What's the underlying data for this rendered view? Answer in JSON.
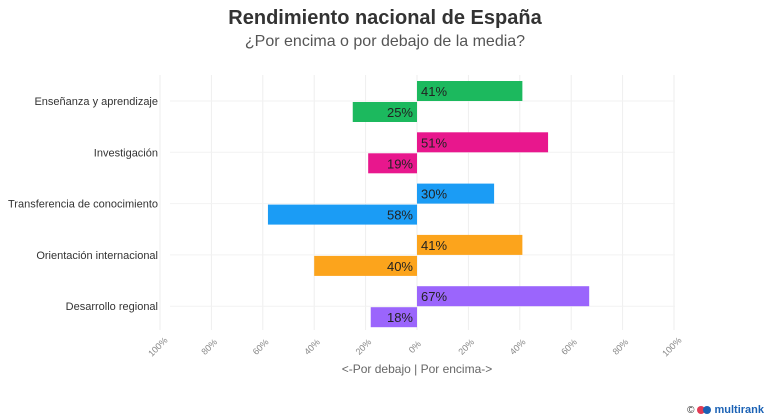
{
  "chart_data": {
    "type": "bar",
    "orientation": "horizontal-diverging",
    "title": "Rendimiento nacional de España",
    "subtitle": "¿Por encima o por debajo de la media?",
    "xlabel": "<-Por debajo | Por encima->",
    "xlim": [
      -100,
      100
    ],
    "x_ticks": [
      -100,
      -80,
      -60,
      -40,
      -20,
      0,
      20,
      40,
      60,
      80,
      100
    ],
    "x_tick_labels": [
      "100%",
      "80%",
      "60%",
      "40%",
      "20%",
      "0%",
      "20%",
      "40%",
      "60%",
      "80%",
      "100%"
    ],
    "grid": true,
    "categories": [
      "Enseñanza y aprendizaje",
      "Investigación",
      "Transferencia de conocimiento",
      "Orientación internacional",
      "Desarrollo regional"
    ],
    "above": [
      41,
      51,
      30,
      41,
      67
    ],
    "below": [
      25,
      19,
      58,
      40,
      18
    ],
    "above_labels": [
      "41%",
      "51%",
      "30%",
      "41%",
      "67%"
    ],
    "below_labels": [
      "25%",
      "19%",
      "58%",
      "40%",
      "18%"
    ],
    "colors": [
      "#1cb95e",
      "#e8178d",
      "#1b9cf5",
      "#fca41c",
      "#9b65fc"
    ]
  },
  "footer": {
    "copyright": "©",
    "brand": "multirank"
  }
}
